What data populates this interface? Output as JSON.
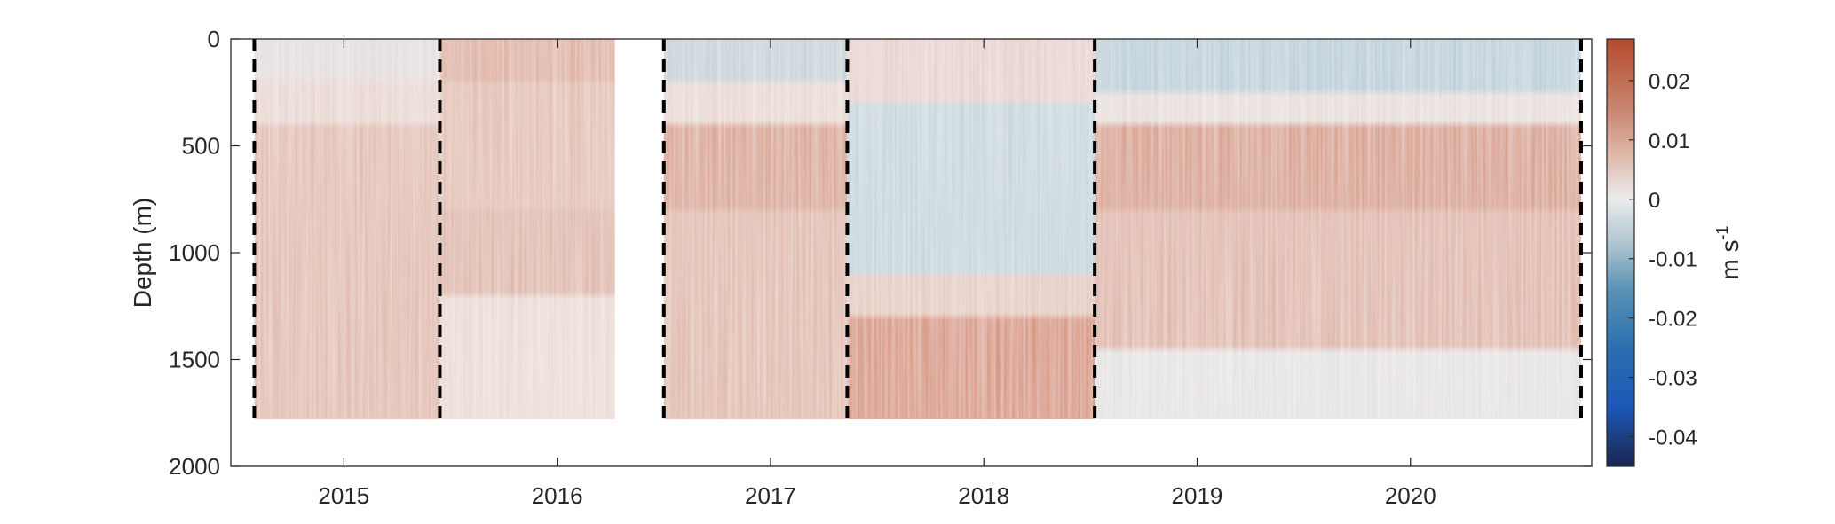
{
  "chart_data": {
    "type": "heatmap",
    "title": "",
    "ylabel": "Depth (m)",
    "xlabel": "",
    "y_reversed": true,
    "ylim": [
      0,
      2000
    ],
    "xlim": [
      2014.47,
      2020.85
    ],
    "yticks": [
      0,
      500,
      1000,
      1500,
      2000
    ],
    "xticks": [
      {
        "value": 2015.0,
        "label": "2015"
      },
      {
        "value": 2016.0,
        "label": "2016"
      },
      {
        "value": 2017.0,
        "label": "2017"
      },
      {
        "value": 2018.0,
        "label": "2018"
      },
      {
        "value": 2019.0,
        "label": "2019"
      },
      {
        "value": 2020.0,
        "label": "2020"
      }
    ],
    "data_depth_max": 1780,
    "colorbar": {
      "label": "m s",
      "label_superscript": "-1",
      "range": [
        -0.045,
        0.027
      ],
      "ticks": [
        0.02,
        0.01,
        0,
        -0.01,
        -0.02,
        -0.03,
        -0.04
      ],
      "tick_labels": [
        "0.02",
        "0.01",
        "0",
        "-0.01",
        "-0.02",
        "-0.03",
        "-0.04"
      ],
      "colormap": [
        {
          "value": -0.045,
          "color": "#1b2550"
        },
        {
          "value": -0.035,
          "color": "#1c58b8"
        },
        {
          "value": -0.025,
          "color": "#2a6fb0"
        },
        {
          "value": -0.015,
          "color": "#5b93b5"
        },
        {
          "value": -0.008,
          "color": "#a9c2cc"
        },
        {
          "value": 0.0,
          "color": "#ececec"
        },
        {
          "value": 0.008,
          "color": "#ddb4a6"
        },
        {
          "value": 0.015,
          "color": "#c98670"
        },
        {
          "value": 0.027,
          "color": "#b34a2e"
        }
      ]
    },
    "segment_boundaries": [
      2014.58,
      2015.45,
      2016.5,
      2017.36,
      2018.52,
      2020.8
    ],
    "segments": [
      {
        "x": [
          2014.58,
          2015.45
        ],
        "layers": [
          {
            "depth": [
              0,
              200
            ],
            "value": 0.0,
            "color": "#e4dede"
          },
          {
            "depth": [
              200,
              400
            ],
            "value": 0.003,
            "color": "#e9d7d1"
          },
          {
            "depth": [
              400,
              1780
            ],
            "value": 0.007,
            "color": "#e2beb2"
          }
        ]
      },
      {
        "x": [
          2015.45,
          2016.27
        ],
        "layers": [
          {
            "depth": [
              0,
              200
            ],
            "value": 0.008,
            "color": "#e0b3a3"
          },
          {
            "depth": [
              200,
              800
            ],
            "value": 0.007,
            "color": "#e3c1b5"
          },
          {
            "depth": [
              800,
              1200
            ],
            "value": 0.008,
            "color": "#dfb9ac"
          },
          {
            "depth": [
              1200,
              1780
            ],
            "value": 0.003,
            "color": "#ecdcd7"
          }
        ]
      },
      {
        "x": [
          2016.5,
          2017.36
        ],
        "layers": [
          {
            "depth": [
              0,
              200
            ],
            "value": -0.005,
            "color": "#c9d4da"
          },
          {
            "depth": [
              200,
              400
            ],
            "value": 0.004,
            "color": "#eadad5"
          },
          {
            "depth": [
              400,
              800
            ],
            "value": 0.01,
            "color": "#dba897"
          },
          {
            "depth": [
              800,
              1780
            ],
            "value": 0.007,
            "color": "#e1bcae"
          }
        ]
      },
      {
        "x": [
          2017.36,
          2018.52
        ],
        "layers": [
          {
            "depth": [
              0,
              300
            ],
            "value": 0.004,
            "color": "#e7d3cd"
          },
          {
            "depth": [
              300,
              1100
            ],
            "value": -0.005,
            "color": "#c8d7de"
          },
          {
            "depth": [
              1100,
              1300
            ],
            "value": 0.005,
            "color": "#e6cdc4"
          },
          {
            "depth": [
              1300,
              1780
            ],
            "value": 0.012,
            "color": "#d99a85"
          }
        ]
      },
      {
        "x": [
          2018.52,
          2020.8
        ],
        "layers": [
          {
            "depth": [
              0,
              250
            ],
            "value": -0.006,
            "color": "#bfd0da"
          },
          {
            "depth": [
              250,
              400
            ],
            "value": 0.002,
            "color": "#e8dfdc"
          },
          {
            "depth": [
              400,
              800
            ],
            "value": 0.011,
            "color": "#d9a391"
          },
          {
            "depth": [
              800,
              1450
            ],
            "value": 0.008,
            "color": "#e0b8ab"
          },
          {
            "depth": [
              1450,
              1780
            ],
            "value": 0.0,
            "color": "#e6e3e3"
          }
        ]
      }
    ],
    "grid": false,
    "legend": "none"
  }
}
